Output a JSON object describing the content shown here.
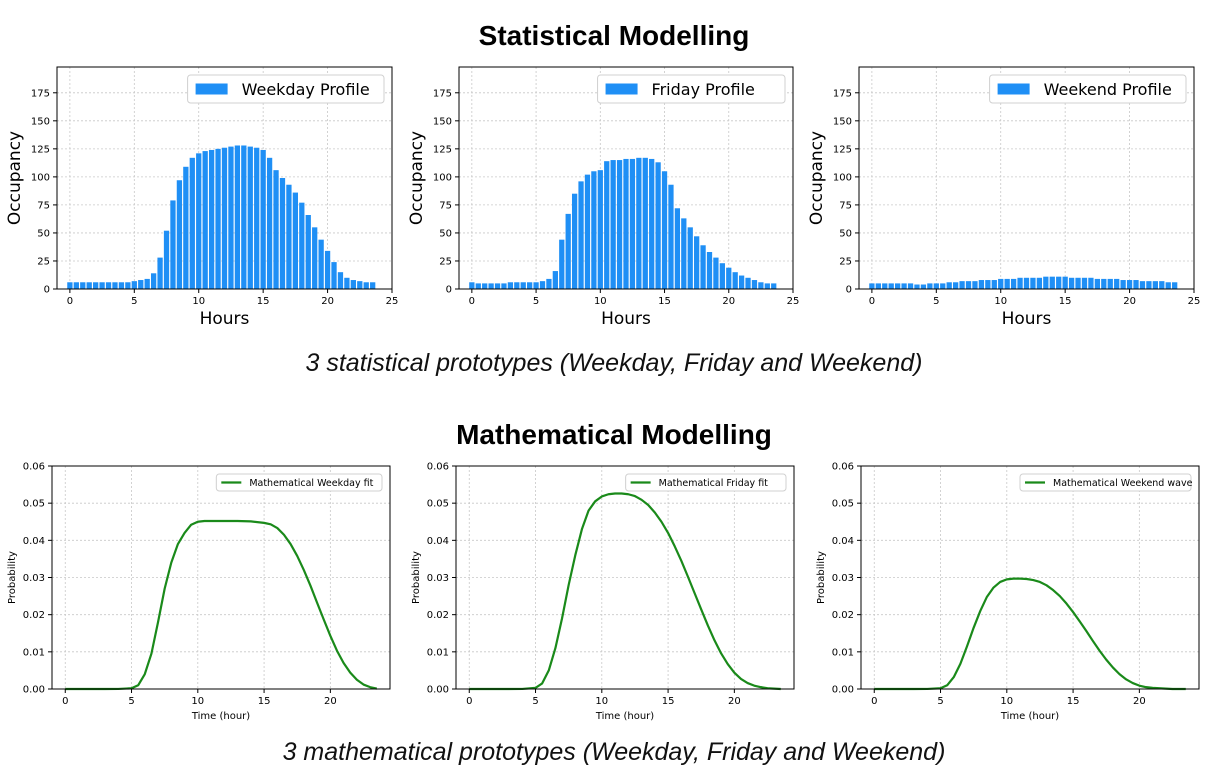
{
  "page": {
    "statistical_title": "Statistical Modelling",
    "statistical_caption": "3 statistical prototypes (Weekday, Friday and Weekend)",
    "mathematical_title": "Mathematical Modelling",
    "mathematical_caption": "3 mathematical prototypes (Weekday, Friday and Weekend)"
  },
  "colors": {
    "bar": "#1f8ff5",
    "line": "#1a8a1a",
    "grid": "#c8c8c8",
    "axis": "#000000"
  },
  "chart_data": [
    {
      "type": "bar",
      "legend": "Weekday Profile",
      "legend_position": "top-right",
      "xlabel": "Hours",
      "ylabel": "Occupancy",
      "xlim": [
        -1,
        25
      ],
      "ylim": [
        0,
        198
      ],
      "xticks": [
        0,
        5,
        10,
        15,
        20,
        25
      ],
      "yticks": [
        0,
        25,
        50,
        75,
        100,
        125,
        150,
        175
      ],
      "grid": true,
      "x": [
        0,
        0.5,
        1,
        1.5,
        2,
        2.5,
        3,
        3.5,
        4,
        4.5,
        5,
        5.5,
        6,
        6.5,
        7,
        7.5,
        8,
        8.5,
        9,
        9.5,
        10,
        10.5,
        11,
        11.5,
        12,
        12.5,
        13,
        13.5,
        14,
        14.5,
        15,
        15.5,
        16,
        16.5,
        17,
        17.5,
        18,
        18.5,
        19,
        19.5,
        20,
        20.5,
        21,
        21.5,
        22,
        22.5,
        23,
        23.5
      ],
      "values": [
        6,
        6,
        6,
        6,
        6,
        6,
        6,
        6,
        6,
        6,
        7,
        8,
        9,
        14,
        28,
        52,
        79,
        97,
        109,
        117,
        121,
        123,
        124,
        125,
        126,
        127,
        128,
        128,
        127,
        126,
        124,
        117,
        106,
        99,
        93,
        86,
        77,
        66,
        55,
        44,
        34,
        24,
        15,
        10,
        8,
        7,
        6,
        6
      ]
    },
    {
      "type": "bar",
      "legend": "Friday Profile",
      "legend_position": "top-right",
      "xlabel": "Hours",
      "ylabel": "Occupancy",
      "xlim": [
        -1,
        25
      ],
      "ylim": [
        0,
        198
      ],
      "xticks": [
        0,
        5,
        10,
        15,
        20,
        25
      ],
      "yticks": [
        0,
        25,
        50,
        75,
        100,
        125,
        150,
        175
      ],
      "grid": true,
      "x": [
        0,
        0.5,
        1,
        1.5,
        2,
        2.5,
        3,
        3.5,
        4,
        4.5,
        5,
        5.5,
        6,
        6.5,
        7,
        7.5,
        8,
        8.5,
        9,
        9.5,
        10,
        10.5,
        11,
        11.5,
        12,
        12.5,
        13,
        13.5,
        14,
        14.5,
        15,
        15.5,
        16,
        16.5,
        17,
        17.5,
        18,
        18.5,
        19,
        19.5,
        20,
        20.5,
        21,
        21.5,
        22,
        22.5,
        23,
        23.5
      ],
      "values": [
        6,
        5,
        5,
        5,
        5,
        5,
        6,
        6,
        6,
        6,
        6,
        7,
        9,
        16,
        44,
        67,
        85,
        96,
        102,
        105,
        106,
        114,
        115,
        115,
        116,
        116,
        117,
        117,
        116,
        113,
        105,
        93,
        72,
        63,
        55,
        47,
        39,
        33,
        28,
        23,
        19,
        15,
        12,
        10,
        8,
        6,
        5,
        5
      ]
    },
    {
      "type": "bar",
      "legend": "Weekend Profile",
      "legend_position": "top-right",
      "xlabel": "Hours",
      "ylabel": "Occupancy",
      "xlim": [
        -1,
        25
      ],
      "ylim": [
        0,
        198
      ],
      "xticks": [
        0,
        5,
        10,
        15,
        20,
        25
      ],
      "yticks": [
        0,
        25,
        50,
        75,
        100,
        125,
        150,
        175
      ],
      "grid": true,
      "x": [
        0,
        0.5,
        1,
        1.5,
        2,
        2.5,
        3,
        3.5,
        4,
        4.5,
        5,
        5.5,
        6,
        6.5,
        7,
        7.5,
        8,
        8.5,
        9,
        9.5,
        10,
        10.5,
        11,
        11.5,
        12,
        12.5,
        13,
        13.5,
        14,
        14.5,
        15,
        15.5,
        16,
        16.5,
        17,
        17.5,
        18,
        18.5,
        19,
        19.5,
        20,
        20.5,
        21,
        21.5,
        22,
        22.5,
        23,
        23.5
      ],
      "values": [
        5,
        5,
        5,
        5,
        5,
        5,
        5,
        4,
        4,
        5,
        5,
        5,
        6,
        6,
        7,
        7,
        7,
        8,
        8,
        8,
        9,
        9,
        9,
        10,
        10,
        10,
        10,
        11,
        11,
        11,
        11,
        10,
        10,
        10,
        10,
        9,
        9,
        9,
        9,
        8,
        8,
        8,
        7,
        7,
        7,
        7,
        6,
        6
      ]
    },
    {
      "type": "line",
      "legend": "Mathematical Weekday fit",
      "legend_position": "top-right",
      "xlabel": "Time (hour)",
      "ylabel": "Probability",
      "xlim": [
        -1,
        24.5
      ],
      "ylim": [
        0,
        0.06
      ],
      "xticks": [
        0,
        5,
        10,
        15,
        20
      ],
      "yticks": [
        0.0,
        0.01,
        0.02,
        0.03,
        0.04,
        0.05,
        0.06
      ],
      "grid": true,
      "x": [
        0,
        1,
        2,
        3,
        4,
        5,
        5.5,
        6,
        6.5,
        7,
        7.5,
        8,
        8.5,
        9,
        9.5,
        10,
        10.5,
        11,
        12,
        13,
        14,
        15,
        15.5,
        16,
        16.5,
        17,
        17.5,
        18,
        18.5,
        19,
        19.5,
        20,
        20.5,
        21,
        21.5,
        22,
        22.5,
        23,
        23.5
      ],
      "values": [
        0,
        0,
        0,
        0,
        2e-05,
        0.0002,
        0.001,
        0.004,
        0.0095,
        0.018,
        0.027,
        0.034,
        0.039,
        0.042,
        0.0442,
        0.045,
        0.0452,
        0.0452,
        0.0452,
        0.0452,
        0.0451,
        0.0447,
        0.0443,
        0.0433,
        0.0415,
        0.039,
        0.0358,
        0.032,
        0.0278,
        0.0232,
        0.0187,
        0.0143,
        0.0103,
        0.007,
        0.0044,
        0.0025,
        0.0012,
        0.0005,
        0.0001
      ]
    },
    {
      "type": "line",
      "legend": "Mathematical Friday fit",
      "legend_position": "top-right",
      "xlabel": "Time (hour)",
      "ylabel": "Probability",
      "xlim": [
        -1,
        24.5
      ],
      "ylim": [
        0,
        0.06
      ],
      "xticks": [
        0,
        5,
        10,
        15,
        20
      ],
      "yticks": [
        0.0,
        0.01,
        0.02,
        0.03,
        0.04,
        0.05,
        0.06
      ],
      "grid": true,
      "x": [
        0,
        1,
        2,
        3,
        4,
        5,
        5.5,
        6,
        6.5,
        7,
        7.5,
        8,
        8.5,
        9,
        9.5,
        10,
        10.5,
        11,
        11.5,
        12,
        12.5,
        13,
        13.5,
        14,
        14.5,
        15,
        15.5,
        16,
        16.5,
        17,
        17.5,
        18,
        18.5,
        19,
        19.5,
        20,
        20.5,
        21,
        21.5,
        22,
        22.5,
        23,
        23.5
      ],
      "values": [
        0,
        0,
        0,
        0,
        2e-05,
        0.0003,
        0.0015,
        0.005,
        0.011,
        0.019,
        0.028,
        0.036,
        0.043,
        0.048,
        0.0505,
        0.0518,
        0.0524,
        0.0526,
        0.0526,
        0.0524,
        0.0519,
        0.0509,
        0.0495,
        0.0475,
        0.045,
        0.042,
        0.0384,
        0.0345,
        0.0302,
        0.0258,
        0.0214,
        0.0171,
        0.0131,
        0.0096,
        0.0067,
        0.0044,
        0.0027,
        0.0016,
        0.0009,
        0.0005,
        0.0002,
        0.0001,
        0
      ]
    },
    {
      "type": "line",
      "legend": "Mathematical Weekend wave",
      "legend_position": "top-right",
      "xlabel": "Time (hour)",
      "ylabel": "Probability",
      "xlim": [
        -1,
        24.5
      ],
      "ylim": [
        0,
        0.06
      ],
      "xticks": [
        0,
        5,
        10,
        15,
        20
      ],
      "yticks": [
        0.0,
        0.01,
        0.02,
        0.03,
        0.04,
        0.05,
        0.06
      ],
      "grid": true,
      "x": [
        0,
        1,
        2,
        3,
        4,
        5,
        5.5,
        6,
        6.5,
        7,
        7.5,
        8,
        8.5,
        9,
        9.5,
        10,
        10.5,
        11,
        11.5,
        12,
        12.5,
        13,
        13.5,
        14,
        14.5,
        15,
        15.5,
        16,
        16.5,
        17,
        17.5,
        18,
        18.5,
        19,
        19.5,
        20,
        20.5,
        21,
        21.5,
        22,
        22.5,
        23,
        23.5
      ],
      "values": [
        0,
        0,
        0,
        0,
        2e-05,
        0.0002,
        0.001,
        0.0032,
        0.0068,
        0.0115,
        0.0165,
        0.021,
        0.0248,
        0.0273,
        0.0288,
        0.0295,
        0.0297,
        0.0297,
        0.0296,
        0.0293,
        0.0288,
        0.0279,
        0.0266,
        0.025,
        0.023,
        0.0207,
        0.0182,
        0.0156,
        0.0129,
        0.0103,
        0.0079,
        0.0058,
        0.004,
        0.0026,
        0.0016,
        0.0009,
        0.0005,
        0.0003,
        0.0002,
        0.0001,
        0,
        0,
        0
      ]
    }
  ]
}
